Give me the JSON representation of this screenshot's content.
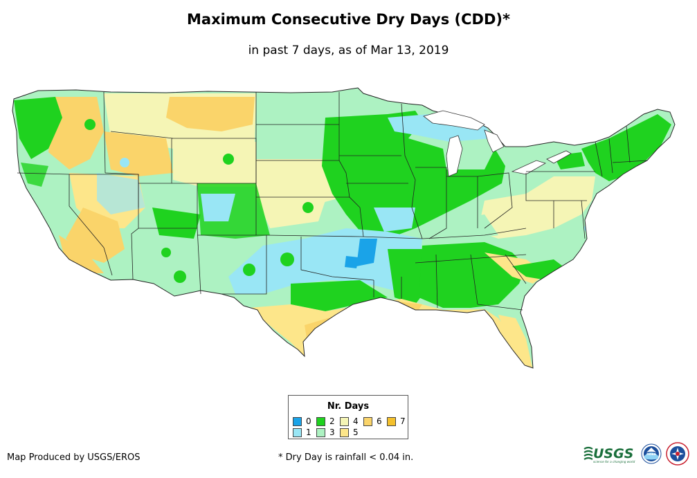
{
  "title": "Maximum Consecutive Dry Days (CDD)*",
  "subtitle": "in past 7 days, as of Mar 13, 2019",
  "legend": {
    "title": "Nr. Days",
    "items": [
      {
        "label": "0",
        "color": "#1aa3e8"
      },
      {
        "label": "1",
        "color": "#99e6f5"
      },
      {
        "label": "2",
        "color": "#1fd21f"
      },
      {
        "label": "3",
        "color": "#adf2c2"
      },
      {
        "label": "4",
        "color": "#f5f5b5"
      },
      {
        "label": "5",
        "color": "#fde68a"
      },
      {
        "label": "6",
        "color": "#fad46a"
      },
      {
        "label": "7",
        "color": "#f4c02c"
      }
    ]
  },
  "credit": "Map Produced by USGS/EROS",
  "footnote": "* Dry Day is rainfall < 0.04 in.",
  "logos": {
    "usgs": "USGS",
    "usgs_tagline": "science for a changing world",
    "noaa": "noaa"
  }
}
